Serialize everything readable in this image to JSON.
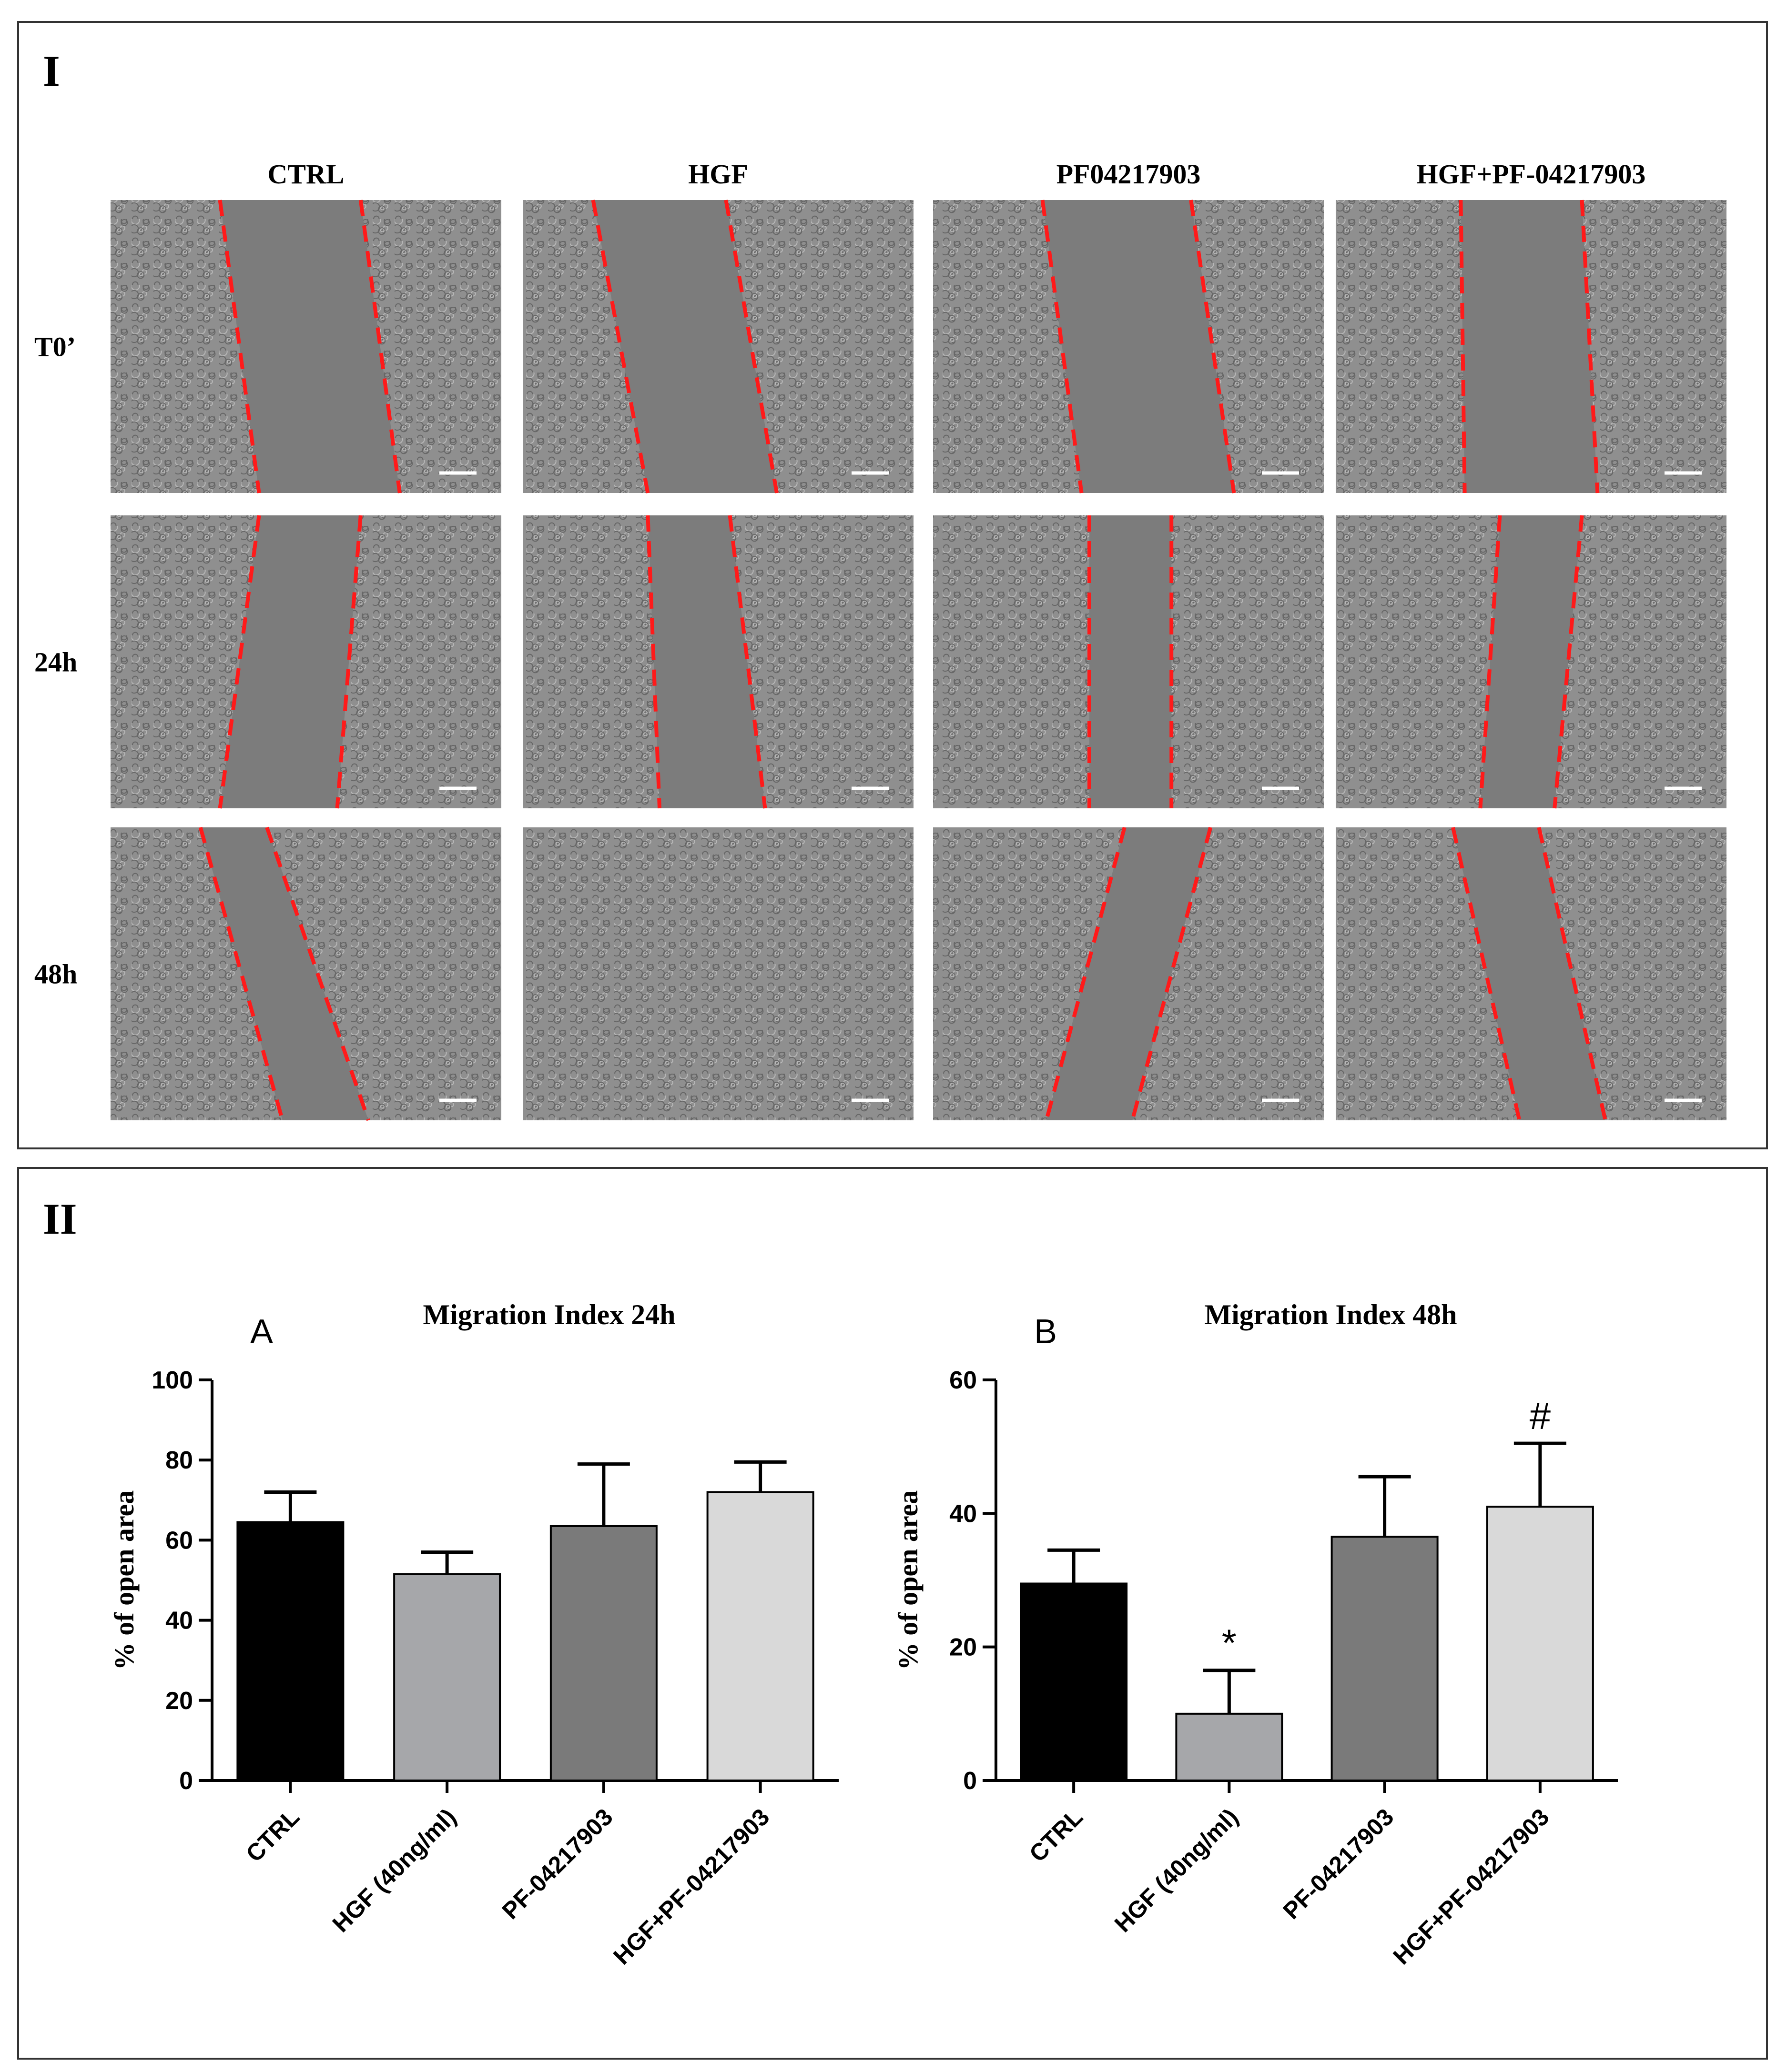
{
  "panel_I": {
    "label": "I",
    "columns": [
      "CTRL",
      "HGF",
      "PF04217903",
      "HGF+PF-04217903"
    ],
    "rows": [
      "T0’",
      "24h",
      "48h"
    ],
    "wound_visible": [
      [
        true,
        true,
        true,
        true
      ],
      [
        true,
        true,
        true,
        true
      ],
      [
        true,
        false,
        true,
        true
      ]
    ]
  },
  "panel_II": {
    "label": "II"
  },
  "colors": {
    "bar_ctrl": "#000000",
    "bar_hgf": "#a6a7aa",
    "bar_pf": "#7a7a7a",
    "bar_combo": "#d9d9d9",
    "wound_line": "#ff1a1a",
    "micrograph_bg": "#8a8a8a"
  },
  "chart_data": [
    {
      "type": "bar",
      "panel_letter": "A",
      "title": "Migration Index 24h",
      "ylabel": "% of open area",
      "xlabel": "",
      "categories": [
        "CTRL",
        "HGF (40ng/ml)",
        "PF-04217903",
        "HGF+PF-04217903"
      ],
      "values": [
        64.5,
        51.5,
        63.5,
        72.0
      ],
      "errors": [
        7.5,
        5.5,
        15.5,
        7.5
      ],
      "annotations": [
        "",
        "",
        "",
        ""
      ],
      "ylim": [
        0,
        100
      ],
      "yticks": [
        0,
        20,
        40,
        60,
        80,
        100
      ],
      "grid": false
    },
    {
      "type": "bar",
      "panel_letter": "B",
      "title": "Migration Index 48h",
      "ylabel": "% of open area",
      "xlabel": "",
      "categories": [
        "CTRL",
        "HGF (40ng/ml)",
        "PF-04217903",
        "HGF+PF-04217903"
      ],
      "values": [
        29.5,
        10.0,
        36.5,
        41.0
      ],
      "errors": [
        5.0,
        6.5,
        9.0,
        9.5
      ],
      "annotations": [
        "",
        "*",
        "",
        "#"
      ],
      "ylim": [
        0,
        60
      ],
      "yticks": [
        0,
        20,
        40,
        60
      ],
      "grid": false
    }
  ]
}
